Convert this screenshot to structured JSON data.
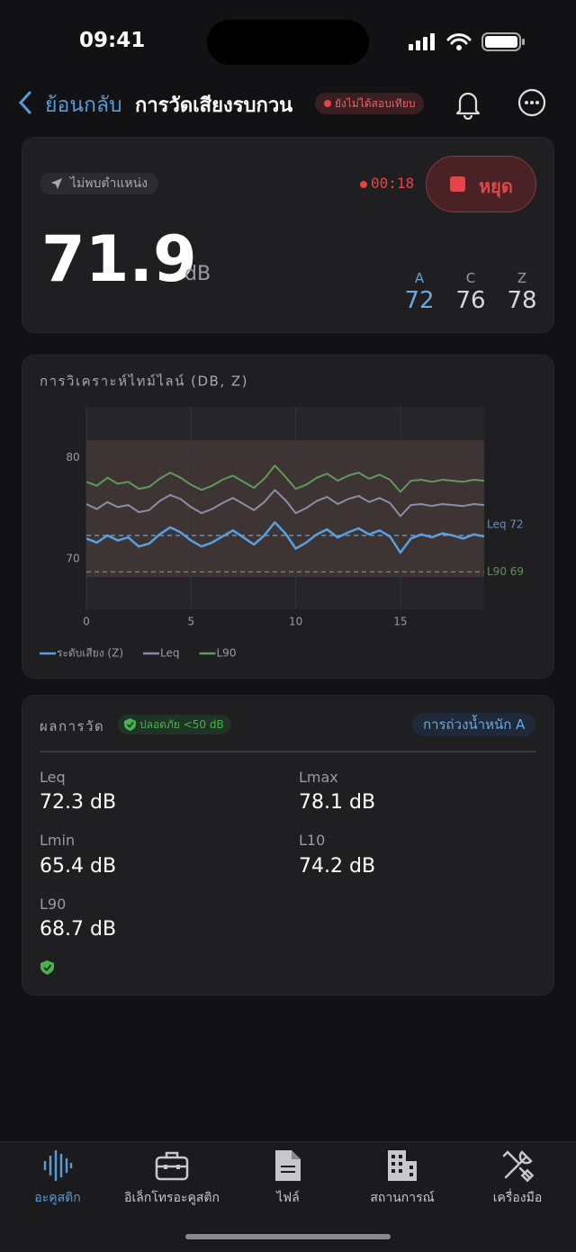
{
  "status_bar": {
    "time": "09:41"
  },
  "nav": {
    "back": "ย้อนกลับ",
    "title": "การวัดเสียงรบกวน",
    "badge": "ยังไม่ได้สอบเทียบ"
  },
  "meter": {
    "location": "ไม่พบตำแหน่ง",
    "timer": "00:18",
    "stop": "หยุด",
    "level": 71.9,
    "unit": "dB",
    "weightings": [
      {
        "label": "A",
        "value": 72
      },
      {
        "label": "C",
        "value": 76
      },
      {
        "label": "Z",
        "value": 78
      }
    ]
  },
  "timeline_chart": {
    "type": "line",
    "title": "การวิเคราะห์ไทม์ไลน์ (DB, Z)",
    "x": [
      0,
      0.5,
      1,
      1.5,
      2,
      2.5,
      3,
      3.5,
      4,
      4.5,
      5,
      5.5,
      6,
      6.5,
      7,
      7.5,
      8,
      8.5,
      9,
      9.5,
      10,
      10.5,
      11,
      11.5,
      12,
      12.5,
      13,
      13.5,
      14,
      14.5,
      15,
      15.5,
      16,
      16.5,
      17,
      17.5,
      18,
      18.5,
      19
    ],
    "series": [
      {
        "name": "ระดับเสียง (Z)",
        "color": "#5a9fe0",
        "values": [
          72.0,
          71.6,
          72.3,
          71.8,
          72.1,
          71.2,
          71.5,
          72.4,
          73.1,
          72.6,
          71.8,
          71.2,
          71.6,
          72.2,
          72.8,
          72.1,
          71.4,
          72.3,
          73.6,
          72.5,
          71.0,
          71.6,
          72.4,
          72.9,
          72.1,
          72.6,
          73.0,
          72.4,
          72.8,
          72.2,
          70.6,
          72.0,
          72.4,
          72.1,
          72.5,
          72.3,
          72.0,
          72.4,
          72.2
        ]
      },
      {
        "name": "Leq",
        "color": "#8a8fa8",
        "values": [
          75.4,
          74.9,
          75.6,
          75.1,
          75.3,
          74.6,
          74.8,
          75.7,
          76.3,
          75.9,
          75.1,
          74.5,
          74.9,
          75.5,
          76.0,
          75.4,
          74.8,
          75.6,
          76.8,
          75.8,
          74.5,
          75.0,
          75.7,
          76.1,
          75.4,
          75.9,
          76.2,
          75.6,
          76.0,
          75.5,
          74.2,
          75.3,
          75.4,
          75.2,
          75.4,
          75.3,
          75.2,
          75.4,
          75.3
        ]
      },
      {
        "name": "L90",
        "color": "#5f9a5a",
        "values": [
          77.6,
          77.2,
          78.0,
          77.4,
          77.6,
          76.9,
          77.1,
          77.9,
          78.5,
          78.0,
          77.3,
          76.8,
          77.2,
          77.8,
          78.2,
          77.6,
          77.0,
          77.9,
          79.2,
          78.1,
          76.9,
          77.3,
          78.0,
          78.4,
          77.7,
          78.2,
          78.5,
          77.9,
          78.3,
          77.8,
          76.6,
          77.7,
          77.8,
          77.6,
          77.8,
          77.7,
          77.6,
          77.8,
          77.7
        ]
      }
    ],
    "band": {
      "low": 68.2,
      "high": 81.7
    },
    "reference_lines": [
      {
        "value": 72.3,
        "label": "Leq 72",
        "color": "#6b8fb5"
      },
      {
        "value": 68.7,
        "label": "L90 69",
        "color": "#6a8a5e"
      }
    ],
    "xlim": [
      0,
      19
    ],
    "xticks": [
      0,
      5,
      10,
      15
    ],
    "ylim": [
      65,
      85
    ],
    "yticks": [
      70,
      80
    ],
    "grid": true
  },
  "results": {
    "title": "ผลการวัด",
    "safe_badge": "ปลอดภัย <50 dB",
    "weighting_button": "การถ่วงน้ำหนัก A",
    "items": [
      {
        "label": "Leq",
        "value": "72.3 dB"
      },
      {
        "label": "Lmax",
        "value": "78.1 dB"
      },
      {
        "label": "Lmin",
        "value": "65.4 dB"
      },
      {
        "label": "L10",
        "value": "74.2 dB"
      },
      {
        "label": "L90",
        "value": "68.7 dB"
      }
    ]
  },
  "tab_bar": {
    "tabs": [
      "อะคูสติก",
      "อิเล็กโทรอะคูสติก",
      "ไฟล์",
      "สถานการณ์",
      "เครื่องมือ"
    ]
  }
}
